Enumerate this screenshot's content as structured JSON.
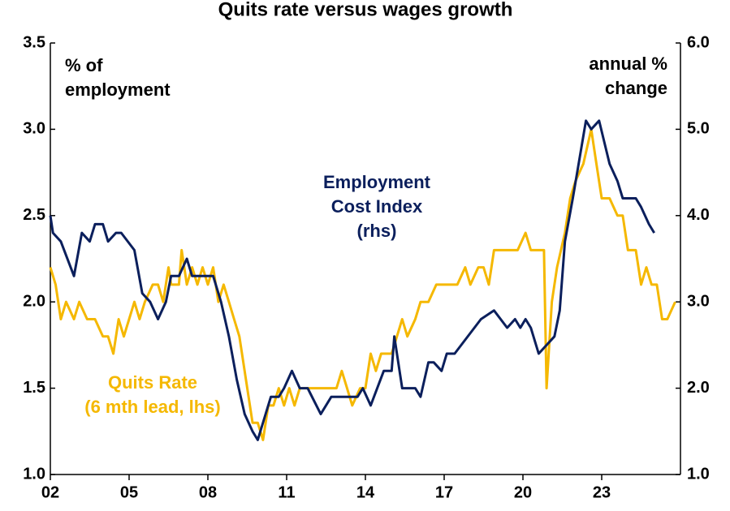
{
  "chart_data": {
    "type": "line",
    "title": "Quits rate versus wages growth",
    "xlim": [
      2002,
      2026
    ],
    "xticks": [
      {
        "value": 2002,
        "label": "02"
      },
      {
        "value": 2005,
        "label": "05"
      },
      {
        "value": 2008,
        "label": "08"
      },
      {
        "value": 2011,
        "label": "11"
      },
      {
        "value": 2014,
        "label": "14"
      },
      {
        "value": 2017,
        "label": "17"
      },
      {
        "value": 2020,
        "label": "20"
      },
      {
        "value": 2023,
        "label": "23"
      }
    ],
    "ylim": [
      1.0,
      3.5
    ],
    "yticks": [
      {
        "value": 1.0,
        "label": "1.0"
      },
      {
        "value": 1.5,
        "label": "1.5"
      },
      {
        "value": 2.0,
        "label": "2.0"
      },
      {
        "value": 2.5,
        "label": "2.5"
      },
      {
        "value": 3.0,
        "label": "3.0"
      },
      {
        "value": 3.5,
        "label": "3.5"
      }
    ],
    "y2lim": [
      1.0,
      6.0
    ],
    "y2ticks": [
      {
        "value": 1.0,
        "label": "1.0"
      },
      {
        "value": 2.0,
        "label": "2.0"
      },
      {
        "value": 3.0,
        "label": "3.0"
      },
      {
        "value": 4.0,
        "label": "4.0"
      },
      {
        "value": 5.0,
        "label": "5.0"
      },
      {
        "value": 6.0,
        "label": "6.0"
      }
    ],
    "annotations": [
      {
        "lines": [
          "% of",
          "employment"
        ]
      },
      {
        "lines": [
          "annual %",
          "change"
        ]
      },
      {
        "lines": [
          "Employment",
          "Cost Index",
          "(rhs)"
        ]
      },
      {
        "lines": [
          "Quits Rate",
          "(6 mth lead, lhs)"
        ]
      }
    ],
    "series": [
      {
        "name": "Quits Rate (6 mth lead, lhs)",
        "color": "#f5b800",
        "axis": "y",
        "x": [
          2002.0,
          2002.2,
          2002.4,
          2002.6,
          2002.9,
          2003.1,
          2003.4,
          2003.7,
          2004.0,
          2004.2,
          2004.4,
          2004.6,
          2004.8,
          2005.0,
          2005.2,
          2005.4,
          2005.6,
          2005.9,
          2006.1,
          2006.3,
          2006.5,
          2006.6,
          2006.9,
          2007.0,
          2007.2,
          2007.4,
          2007.6,
          2007.8,
          2008.0,
          2008.2,
          2008.4,
          2008.6,
          2008.8,
          2009.0,
          2009.2,
          2009.5,
          2009.7,
          2009.9,
          2010.1,
          2010.3,
          2010.5,
          2010.7,
          2010.9,
          2011.1,
          2011.3,
          2011.5,
          2011.7,
          2012.0,
          2012.2,
          2012.5,
          2012.9,
          2013.1,
          2013.3,
          2013.5,
          2013.8,
          2014.0,
          2014.2,
          2014.4,
          2014.6,
          2015.0,
          2015.2,
          2015.4,
          2015.6,
          2015.9,
          2016.1,
          2016.4,
          2016.7,
          2017.0,
          2017.3,
          2017.5,
          2017.8,
          2018.0,
          2018.3,
          2018.5,
          2018.7,
          2018.9,
          2019.2,
          2019.5,
          2019.8,
          2020.1,
          2020.3,
          2020.5,
          2020.8,
          2020.9,
          2021.1,
          2021.3,
          2021.6,
          2021.8,
          2022.0,
          2022.3,
          2022.6,
          2022.8,
          2023.0,
          2023.3,
          2023.6,
          2023.8,
          2024.0,
          2024.3,
          2024.5,
          2024.7,
          2024.9,
          2025.1,
          2025.3,
          2025.5,
          2025.8
        ],
        "values": [
          2.2,
          2.1,
          1.9,
          2.0,
          1.9,
          2.0,
          1.9,
          1.9,
          1.8,
          1.8,
          1.7,
          1.9,
          1.8,
          1.9,
          2.0,
          1.9,
          2.0,
          2.1,
          2.1,
          2.0,
          2.2,
          2.1,
          2.1,
          2.3,
          2.1,
          2.2,
          2.1,
          2.2,
          2.1,
          2.2,
          2.0,
          2.1,
          2.0,
          1.9,
          1.8,
          1.5,
          1.3,
          1.3,
          1.2,
          1.4,
          1.4,
          1.5,
          1.4,
          1.5,
          1.4,
          1.5,
          1.5,
          1.5,
          1.5,
          1.5,
          1.5,
          1.6,
          1.5,
          1.4,
          1.5,
          1.5,
          1.7,
          1.6,
          1.7,
          1.7,
          1.8,
          1.9,
          1.8,
          1.9,
          2.0,
          2.0,
          2.1,
          2.1,
          2.1,
          2.1,
          2.2,
          2.1,
          2.2,
          2.2,
          2.1,
          2.3,
          2.3,
          2.3,
          2.3,
          2.4,
          2.3,
          2.3,
          2.3,
          1.5,
          2.0,
          2.2,
          2.4,
          2.6,
          2.7,
          2.8,
          3.0,
          2.8,
          2.6,
          2.6,
          2.5,
          2.5,
          2.3,
          2.3,
          2.1,
          2.2,
          2.1,
          2.1,
          1.9,
          1.9,
          2.0
        ]
      },
      {
        "name": "Employment Cost Index (rhs)",
        "color": "#0b1f5c",
        "axis": "y2",
        "x": [
          2002.0,
          2002.1,
          2002.4,
          2002.9,
          2003.2,
          2003.5,
          2003.7,
          2004.0,
          2004.2,
          2004.5,
          2004.7,
          2005.2,
          2005.5,
          2005.8,
          2006.1,
          2006.4,
          2006.6,
          2006.9,
          2007.2,
          2007.4,
          2008.2,
          2008.5,
          2008.8,
          2009.1,
          2009.4,
          2009.7,
          2009.9,
          2010.2,
          2010.4,
          2010.7,
          2010.9,
          2011.2,
          2011.5,
          2011.8,
          2012.3,
          2012.7,
          2013.7,
          2013.9,
          2014.2,
          2014.7,
          2015.0,
          2015.1,
          2015.4,
          2015.9,
          2016.1,
          2016.4,
          2016.6,
          2016.9,
          2017.1,
          2017.4,
          2018.4,
          2018.9,
          2019.4,
          2019.7,
          2019.9,
          2020.1,
          2020.3,
          2020.6,
          2021.2,
          2021.4,
          2021.6,
          2021.9,
          2022.4,
          2022.6,
          2022.9,
          2023.3,
          2023.6,
          2023.8,
          2024.3,
          2024.5,
          2024.8,
          2025.0
        ],
        "values": [
          4.0,
          3.8,
          3.7,
          3.3,
          3.8,
          3.7,
          3.9,
          3.9,
          3.7,
          3.8,
          3.8,
          3.6,
          3.1,
          3.0,
          2.8,
          3.0,
          3.3,
          3.3,
          3.5,
          3.3,
          3.3,
          3.0,
          2.6,
          2.1,
          1.7,
          1.5,
          1.4,
          1.7,
          1.9,
          1.9,
          2.0,
          2.2,
          2.0,
          2.0,
          1.7,
          1.9,
          1.9,
          2.0,
          1.8,
          2.2,
          2.2,
          2.6,
          2.0,
          2.0,
          1.9,
          2.3,
          2.3,
          2.2,
          2.4,
          2.4,
          2.8,
          2.9,
          2.7,
          2.8,
          2.7,
          2.8,
          2.7,
          2.4,
          2.6,
          2.9,
          3.7,
          4.2,
          5.1,
          5.0,
          5.1,
          4.6,
          4.4,
          4.2,
          4.2,
          4.1,
          3.9,
          3.8
        ]
      }
    ]
  }
}
